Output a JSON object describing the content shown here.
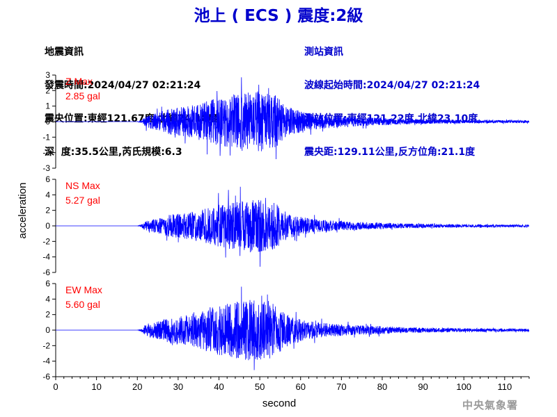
{
  "title": "池上 ( ECS ) 震度:2級",
  "quake_info": {
    "heading": "地震資訊",
    "time": "發震時間:2024/04/27 02:21:24",
    "epicenter": "震央位置:東經121.67度,北緯24.18度",
    "depth_mag": "深  度:35.5公里,芮氏規模:6.3"
  },
  "station_info": {
    "heading": "測站資訊",
    "wave_start": "波線起始時間:2024/04/27 02:21:24",
    "location": "測站位置:東經121.22度,北緯23.10度",
    "distance": "震央距:129.11公里,反方位角:21.1度"
  },
  "footer": "中央氣象署",
  "chart_data": {
    "type": "line",
    "xlabel": "second",
    "ylabel": "acceleration",
    "xlim": [
      0,
      116
    ],
    "x_ticks": [
      0,
      10,
      20,
      30,
      40,
      50,
      60,
      70,
      80,
      90,
      100,
      110
    ],
    "grid": false,
    "series_color": "#0000ff",
    "label_color": "#ff0000",
    "panels": [
      {
        "component": "Z",
        "label": "Z Max",
        "max_text": "2.85 gal",
        "max_value": 2.85,
        "ylim": [
          -3,
          3
        ],
        "y_ticks": [
          3,
          2,
          1,
          0,
          -1,
          -2,
          -3
        ],
        "noise_seed": 11
      },
      {
        "component": "NS",
        "label": "NS Max",
        "max_text": "5.27 gal",
        "max_value": 5.27,
        "ylim": [
          -6,
          6
        ],
        "y_ticks": [
          6,
          4,
          2,
          0,
          -2,
          -4,
          -6
        ],
        "noise_seed": 23
      },
      {
        "component": "EW",
        "label": "EW Max",
        "max_text": "5.60 gal",
        "max_value": 5.6,
        "ylim": [
          -6,
          6
        ],
        "y_ticks": [
          6,
          4,
          2,
          0,
          -2,
          -4,
          -6
        ],
        "noise_seed": 37
      }
    ],
    "envelope": [
      [
        0,
        0
      ],
      [
        20,
        0
      ],
      [
        21,
        0.05
      ],
      [
        22,
        0.18
      ],
      [
        24,
        0.25
      ],
      [
        26,
        0.3
      ],
      [
        28,
        0.42
      ],
      [
        30,
        0.45
      ],
      [
        33,
        0.5
      ],
      [
        36,
        0.62
      ],
      [
        40,
        0.78
      ],
      [
        44,
        0.88
      ],
      [
        46,
        0.95
      ],
      [
        48,
        1.0
      ],
      [
        50,
        0.95
      ],
      [
        52,
        0.92
      ],
      [
        54,
        0.82
      ],
      [
        56,
        0.55
      ],
      [
        58,
        0.42
      ],
      [
        61,
        0.3
      ],
      [
        64,
        0.24
      ],
      [
        68,
        0.2
      ],
      [
        72,
        0.16
      ],
      [
        76,
        0.14
      ],
      [
        80,
        0.12
      ],
      [
        85,
        0.09
      ],
      [
        90,
        0.08
      ],
      [
        95,
        0.065
      ],
      [
        100,
        0.055
      ],
      [
        105,
        0.05
      ],
      [
        110,
        0.045
      ],
      [
        116,
        0.045
      ]
    ]
  }
}
